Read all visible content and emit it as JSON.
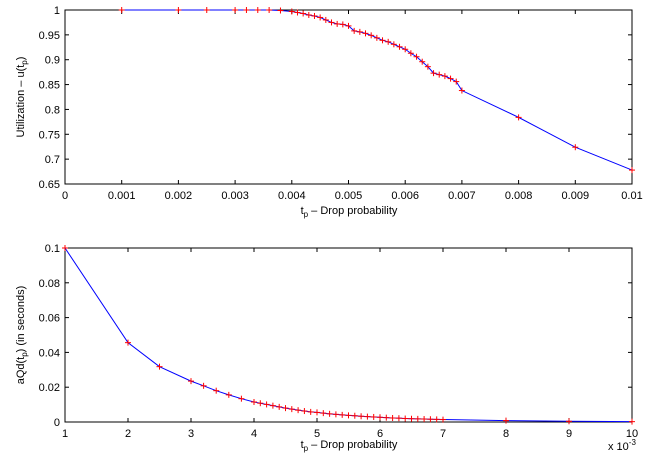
{
  "chart_data": [
    {
      "type": "line",
      "xlabel": "t_p – Drop probability",
      "ylabel": "Utilization – u(t_p)",
      "xlim": [
        0,
        0.01
      ],
      "ylim": [
        0.65,
        1
      ],
      "xticks": [
        "0",
        "0.001",
        "0.002",
        "0.003",
        "0.004",
        "0.005",
        "0.006",
        "0.007",
        "0.008",
        "0.009",
        "0.01"
      ],
      "yticks": [
        "0.65",
        "0.7",
        "0.75",
        "0.8",
        "0.85",
        "0.9",
        "0.95",
        "1"
      ],
      "grid": false,
      "series": [
        {
          "line_color": "#0000ff",
          "marker": "+",
          "marker_color": "#ff0000",
          "x": [
            0.001,
            0.002,
            0.0025,
            0.003,
            0.0032,
            0.0034,
            0.0036,
            0.0038,
            0.004,
            0.0041,
            0.0042,
            0.0043,
            0.0044,
            0.0045,
            0.0046,
            0.0047,
            0.0048,
            0.0049,
            0.005,
            0.0051,
            0.0052,
            0.0053,
            0.0054,
            0.0055,
            0.0056,
            0.0057,
            0.0058,
            0.0059,
            0.006,
            0.0061,
            0.0062,
            0.0063,
            0.0064,
            0.0065,
            0.0066,
            0.0067,
            0.0068,
            0.0069,
            0.007,
            0.008,
            0.009,
            0.01
          ],
          "y": [
            1.0,
            1.0,
            1.0,
            1.0,
            1.0,
            1.0,
            1.0,
            0.999,
            0.997,
            0.995,
            0.993,
            0.99,
            0.988,
            0.985,
            0.98,
            0.975,
            0.972,
            0.971,
            0.968,
            0.958,
            0.956,
            0.953,
            0.949,
            0.944,
            0.939,
            0.936,
            0.931,
            0.926,
            0.921,
            0.913,
            0.906,
            0.896,
            0.886,
            0.873,
            0.87,
            0.867,
            0.862,
            0.856,
            0.838,
            0.784,
            0.724,
            0.678
          ]
        }
      ]
    },
    {
      "type": "line",
      "xlabel": "t_p – Drop probability",
      "ylabel": "aQd(t_p) (in seconds)",
      "xlim": [
        1,
        10
      ],
      "ylim": [
        0,
        0.1
      ],
      "x_multiplier": "x 10^-3",
      "xticks": [
        "1",
        "2",
        "3",
        "4",
        "5",
        "6",
        "7",
        "8",
        "9",
        "10"
      ],
      "yticks": [
        "0",
        "0.02",
        "0.04",
        "0.06",
        "0.08",
        "0.1"
      ],
      "grid": false,
      "series": [
        {
          "line_color": "#0000ff",
          "marker": "+",
          "marker_color": "#ff0000",
          "x": [
            1,
            2,
            2.5,
            3,
            3.2,
            3.4,
            3.6,
            3.8,
            4,
            4.1,
            4.2,
            4.3,
            4.4,
            4.5,
            4.6,
            4.7,
            4.8,
            4.9,
            5,
            5.1,
            5.2,
            5.3,
            5.4,
            5.5,
            5.6,
            5.7,
            5.8,
            5.9,
            6,
            6.1,
            6.2,
            6.3,
            6.4,
            6.5,
            6.6,
            6.7,
            6.8,
            6.9,
            7,
            8,
            9,
            10
          ],
          "y": [
            0.1,
            0.0456,
            0.0318,
            0.0235,
            0.0208,
            0.018,
            0.0156,
            0.0134,
            0.0115,
            0.0108,
            0.0101,
            0.0094,
            0.0087,
            0.008,
            0.0074,
            0.0068,
            0.0063,
            0.0058,
            0.0055,
            0.0051,
            0.0047,
            0.0044,
            0.0041,
            0.0038,
            0.0036,
            0.0033,
            0.0031,
            0.0029,
            0.0027,
            0.0025,
            0.0023,
            0.0022,
            0.002,
            0.0019,
            0.0018,
            0.0017,
            0.0016,
            0.0015,
            0.0014,
            0.0008,
            0.0004,
            0.0002
          ]
        }
      ]
    }
  ]
}
